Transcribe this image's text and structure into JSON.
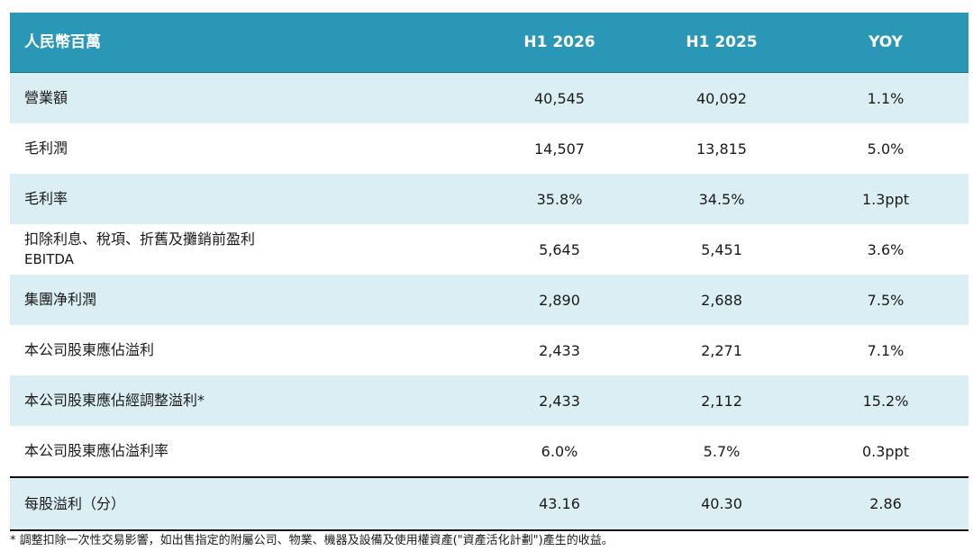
{
  "table": {
    "header": {
      "label": "人民幣百萬",
      "col1": "H1 2026",
      "col2": "H1 2025",
      "col3": "YOY"
    },
    "rows": [
      {
        "label": "營業額",
        "sub": "",
        "h1_2026": "40,545",
        "h1_2025": "40,092",
        "yoy": "1.1%"
      },
      {
        "label": "毛利潤",
        "sub": "",
        "h1_2026": "14,507",
        "h1_2025": "13,815",
        "yoy": "5.0%"
      },
      {
        "label": "毛利率",
        "sub": "",
        "h1_2026": "35.8%",
        "h1_2025": "34.5%",
        "yoy": "1.3ppt"
      },
      {
        "label": "扣除利息、稅項、折舊及攤銷前盈利",
        "sub": "EBITDA",
        "h1_2026": "5,645",
        "h1_2025": "5,451",
        "yoy": "3.6%"
      },
      {
        "label": "集團净利潤",
        "sub": "",
        "h1_2026": "2,890",
        "h1_2025": "2,688",
        "yoy": "7.5%"
      },
      {
        "label": "本公司股東應佔溢利",
        "sub": "",
        "h1_2026": "2,433",
        "h1_2025": "2,271",
        "yoy": "7.1%"
      },
      {
        "label": "本公司股東應佔經調整溢利*",
        "sub": "",
        "h1_2026": "2,433",
        "h1_2025": "2,112",
        "yoy": "15.2%"
      },
      {
        "label": "本公司股東應佔溢利率",
        "sub": "",
        "h1_2026": "6.0%",
        "h1_2025": "5.7%",
        "yoy": "0.3ppt"
      },
      {
        "label": "每股溢利（分）",
        "sub": "",
        "h1_2026": "43.16",
        "h1_2025": "40.30",
        "yoy": "2.86"
      }
    ]
  },
  "footnote": "* 調整扣除一次性交易影響，如出售指定的附屬公司、物業、機器及設備及使用權資產(\"資產活化計劃\")產生的收益。",
  "colors": {
    "header_bg": "#2b97b6",
    "row_tint": "#dbeef4"
  }
}
